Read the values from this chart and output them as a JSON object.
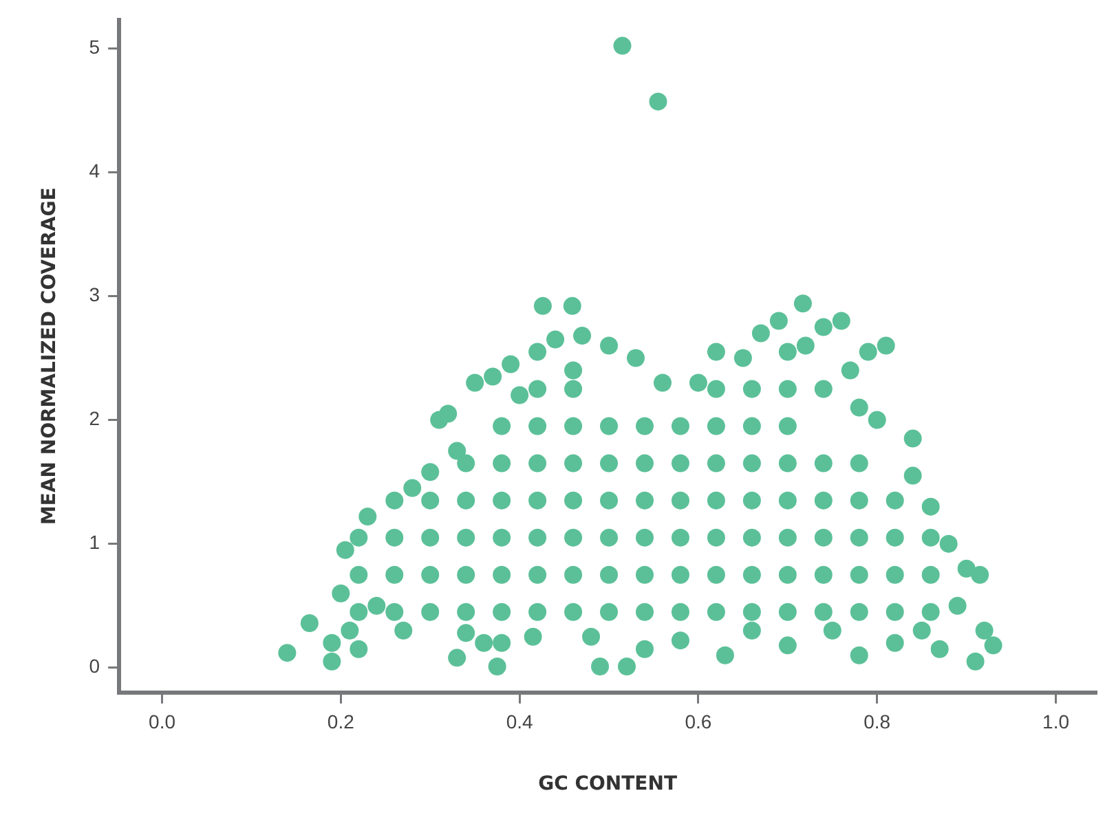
{
  "chart_data": {
    "type": "scatter",
    "xlabel": "GC CONTENT",
    "ylabel": "MEAN NORMALIZED COVERAGE",
    "marker": "circle",
    "xlim": [
      -0.048,
      1.045
    ],
    "ylim": [
      -0.2,
      5.23
    ],
    "xticks": [
      {
        "value": 0,
        "label": "0.0"
      },
      {
        "value": 0.2,
        "label": "0.2"
      },
      {
        "value": 0.4,
        "label": "0.4"
      },
      {
        "value": 0.6,
        "label": "0.6"
      },
      {
        "value": 0.8,
        "label": "0.8"
      },
      {
        "value": 1,
        "label": "1.0"
      }
    ],
    "yticks": [
      0,
      1,
      2,
      3,
      4,
      5
    ],
    "series": [
      {
        "color": "#5bc098",
        "x": [
          0.14,
          0.165,
          0.19,
          0.19,
          0.2,
          0.205,
          0.21,
          0.22,
          0.23,
          0.24,
          0.26,
          0.27,
          0.28,
          0.3,
          0.31,
          0.32,
          0.33,
          0.33,
          0.34,
          0.35,
          0.36,
          0.37,
          0.375,
          0.38,
          0.39,
          0.4,
          0.415,
          0.42,
          0.426,
          0.44,
          0.459,
          0.46,
          0.47,
          0.48,
          0.49,
          0.5,
          0.515,
          0.52,
          0.53,
          0.54,
          0.555,
          0.56,
          0.58,
          0.6,
          0.62,
          0.63,
          0.65,
          0.66,
          0.67,
          0.69,
          0.7,
          0.717,
          0.72,
          0.74,
          0.75,
          0.76,
          0.77,
          0.78,
          0.79,
          0.8,
          0.81,
          0.82,
          0.84,
          0.84,
          0.85,
          0.86,
          0.87,
          0.88,
          0.89,
          0.9,
          0.91,
          0.915,
          0.92,
          0.93,
          0.22,
          0.22,
          0.22,
          0.26,
          0.26,
          0.26,
          0.3,
          0.3,
          0.3,
          0.3,
          0.34,
          0.34,
          0.34,
          0.34,
          0.34,
          0.38,
          0.38,
          0.38,
          0.38,
          0.38,
          0.38,
          0.42,
          0.42,
          0.42,
          0.42,
          0.42,
          0.42,
          0.42,
          0.46,
          0.46,
          0.46,
          0.46,
          0.46,
          0.46,
          0.46,
          0.5,
          0.5,
          0.5,
          0.5,
          0.5,
          0.5,
          0.54,
          0.54,
          0.54,
          0.54,
          0.54,
          0.54,
          0.58,
          0.58,
          0.58,
          0.58,
          0.58,
          0.58,
          0.62,
          0.62,
          0.62,
          0.62,
          0.62,
          0.62,
          0.62,
          0.66,
          0.66,
          0.66,
          0.66,
          0.66,
          0.66,
          0.66,
          0.7,
          0.7,
          0.7,
          0.7,
          0.7,
          0.7,
          0.7,
          0.7,
          0.74,
          0.74,
          0.74,
          0.74,
          0.74,
          0.74,
          0.78,
          0.78,
          0.78,
          0.78,
          0.78,
          0.78,
          0.82,
          0.82,
          0.82,
          0.82,
          0.86,
          0.86,
          0.86
        ],
        "values": [
          0.12,
          0.36,
          0.05,
          0.2,
          0.6,
          0.95,
          0.3,
          0.15,
          1.22,
          0.5,
          1.35,
          0.3,
          1.45,
          1.58,
          2.0,
          2.05,
          0.08,
          1.75,
          0.28,
          2.3,
          0.2,
          2.35,
          0.01,
          0.2,
          2.45,
          2.2,
          0.25,
          2.55,
          2.92,
          2.65,
          2.92,
          2.4,
          2.68,
          0.25,
          0.01,
          2.6,
          5.02,
          0.01,
          2.5,
          0.15,
          4.57,
          2.3,
          0.22,
          2.3,
          2.55,
          0.1,
          2.5,
          0.3,
          2.7,
          2.8,
          0.18,
          2.94,
          2.6,
          2.75,
          0.3,
          2.8,
          2.4,
          0.1,
          2.55,
          2.0,
          2.6,
          0.2,
          1.85,
          1.55,
          0.3,
          1.3,
          0.15,
          1.0,
          0.5,
          0.8,
          0.05,
          0.75,
          0.3,
          0.18,
          0.45,
          0.75,
          1.05,
          0.45,
          0.75,
          1.05,
          0.45,
          0.75,
          1.05,
          1.35,
          0.45,
          0.75,
          1.05,
          1.35,
          1.65,
          0.45,
          0.75,
          1.05,
          1.35,
          1.65,
          1.95,
          0.45,
          0.75,
          1.05,
          1.35,
          1.65,
          1.95,
          2.25,
          0.45,
          0.75,
          1.05,
          1.35,
          1.65,
          1.95,
          2.25,
          0.45,
          0.75,
          1.05,
          1.35,
          1.65,
          1.95,
          0.45,
          0.75,
          1.05,
          1.35,
          1.65,
          1.95,
          0.45,
          0.75,
          1.05,
          1.35,
          1.65,
          1.95,
          0.45,
          0.75,
          1.05,
          1.35,
          1.65,
          1.95,
          2.25,
          0.45,
          0.75,
          1.05,
          1.35,
          1.65,
          1.95,
          2.25,
          0.45,
          0.75,
          1.05,
          1.35,
          1.65,
          1.95,
          2.25,
          2.55,
          0.45,
          0.75,
          1.05,
          1.35,
          1.65,
          2.25,
          0.45,
          0.75,
          1.05,
          1.35,
          1.65,
          2.1,
          0.45,
          0.75,
          1.05,
          1.35,
          0.45,
          0.75,
          1.05
        ]
      }
    ]
  }
}
